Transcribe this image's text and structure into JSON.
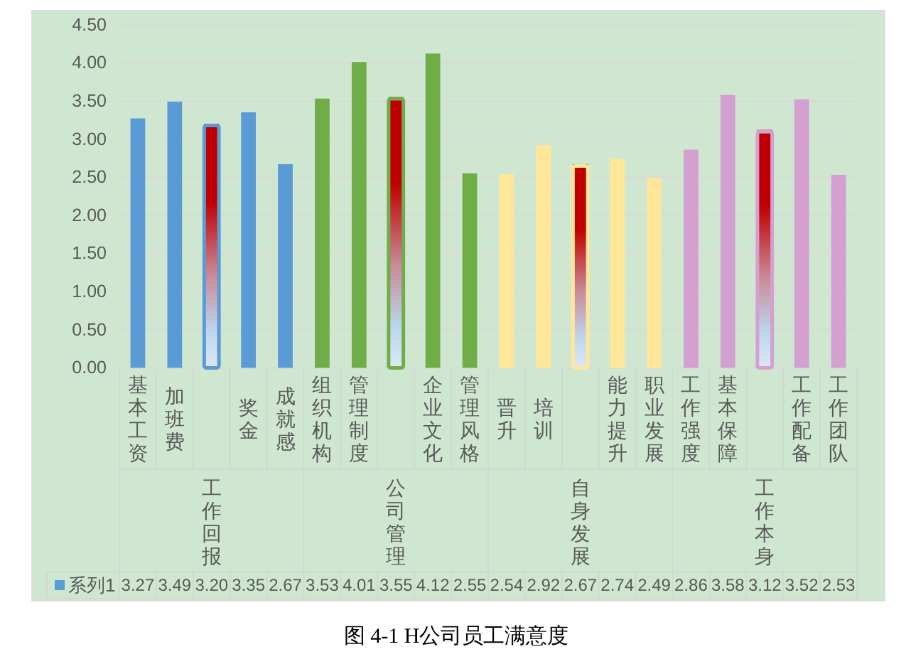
{
  "chart_data": {
    "type": "bar",
    "title": "图 4-1 H公司员工满意度",
    "categories": [
      "基本工资",
      "加班费",
      null,
      "奖金",
      "成就感",
      "组织机构",
      "管理制度",
      null,
      "企业文化",
      "管理风格",
      "晋升",
      "培训",
      null,
      "能力提升",
      "职业发展",
      "工作强度",
      "基本保障",
      null,
      "工作配备",
      "工作团队"
    ],
    "annotations": [
      "工作回报",
      "公司管理",
      "自身发展",
      "工作本身"
    ],
    "series": [
      {
        "name": "系列1",
        "color": "#5b9bd5",
        "values": [
          3.27,
          3.49,
          3.2,
          3.35,
          2.67,
          3.53,
          4.01,
          3.55,
          4.12,
          2.55,
          2.54,
          2.92,
          2.67,
          2.74,
          2.49,
          2.86,
          3.58,
          3.12,
          3.52,
          2.53
        ],
        "colors": [
          "#5b9bd5",
          "#5b9bd5",
          "#c00000",
          "#5b9bd5",
          "#5b9bd5",
          "#70ad47",
          "#70ad47",
          "#c00000",
          "#70ad47",
          "#70ad47",
          "#ffe699",
          "#ffe699",
          "#c00000",
          "#ffe699",
          "#ffe699",
          "#d4a0d0",
          "#d4a0d0",
          "#c00000",
          "#d4a0d0",
          "#d4a0d0"
        ],
        "value_labels": [
          "3.27",
          "3.49",
          "3.20",
          "3.35",
          "2.67",
          "3.53",
          "4.01",
          "3.55",
          "4.12",
          "2.55",
          "2.54",
          "2.92",
          "2.67",
          "2.74",
          "2.49",
          "2.86",
          "3.58",
          "3.12",
          "3.52",
          "2.53"
        ]
      }
    ],
    "ylim": [
      0,
      4.5
    ],
    "yticks": [
      {
        "value": 0,
        "label": "0.00"
      },
      {
        "value": 0.5,
        "label": "0.50"
      },
      {
        "value": 1,
        "label": "1.00"
      },
      {
        "value": 1.5,
        "label": "1.50"
      },
      {
        "value": 2,
        "label": "2.00"
      },
      {
        "value": 2.5,
        "label": "2.50"
      },
      {
        "value": 3,
        "label": "3.00"
      },
      {
        "value": 3.5,
        "label": "3.50"
      },
      {
        "value": 4,
        "label": "4.00"
      },
      {
        "value": 4.5,
        "label": "4.50"
      }
    ],
    "grid": "y",
    "legend": "bottom left"
  }
}
